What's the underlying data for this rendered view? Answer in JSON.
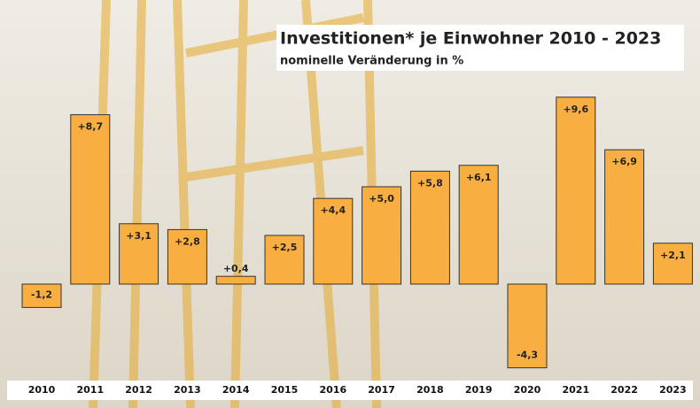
{
  "chart_data": {
    "type": "bar",
    "title": "Investitionen* je Einwohner 2010 - 2023",
    "subtitle": "nominelle Veränderung in %",
    "categories": [
      "2010",
      "2011",
      "2012",
      "2013",
      "2014",
      "2015",
      "2016",
      "2017",
      "2018",
      "2019",
      "2020",
      "2021",
      "2022",
      "2023"
    ],
    "values": [
      -1.2,
      8.7,
      3.1,
      2.8,
      0.4,
      2.5,
      4.4,
      5.0,
      5.8,
      6.1,
      -4.3,
      9.6,
      6.9,
      2.1
    ],
    "value_labels": [
      "-1,2",
      "+8,7",
      "+3,1",
      "+2,8",
      "+0,4",
      "+2,5",
      "+4,4",
      "+5,0",
      "+5,8",
      "+6,1",
      "-4,3",
      "+9,6",
      "+6,9",
      "+2,1"
    ],
    "color": "#f9ae42"
  }
}
